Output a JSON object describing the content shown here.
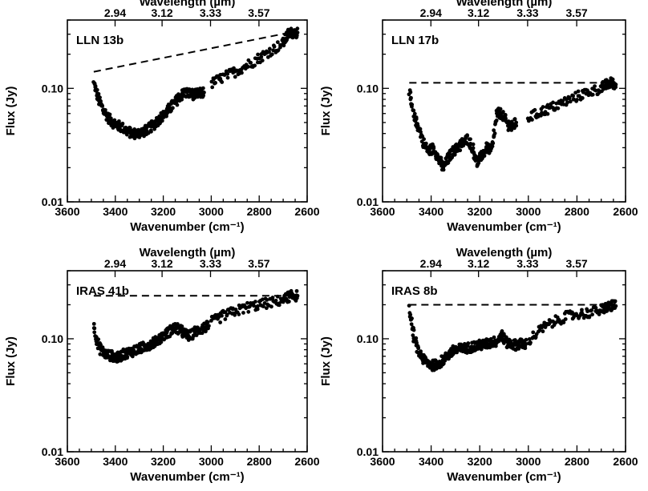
{
  "chart_data": [
    {
      "type": "scatter",
      "panel_label": "LLN 13b",
      "xlabel": "Wavenumber (cm⁻¹)",
      "ylabel": "Flux (Jy)",
      "top_axis_title": "Wavelength (µm)",
      "top_ticks": [
        {
          "wavenumber": 3401,
          "label": "2.94"
        },
        {
          "wavenumber": 3205,
          "label": "3.12"
        },
        {
          "wavenumber": 3003,
          "label": "3.33"
        },
        {
          "wavenumber": 2801,
          "label": "3.57"
        }
      ],
      "xlim": [
        3600,
        2600
      ],
      "ylim": [
        0.01,
        0.4
      ],
      "yscale": "log",
      "x_ticks": [
        "3600",
        "3400",
        "3200",
        "3000",
        "2800",
        "2600"
      ],
      "y_ticks": [
        "0.10",
        "0.01"
      ],
      "continuum": {
        "x": [
          3490,
          2640
        ],
        "y": [
          0.14,
          0.32
        ]
      },
      "segments": [
        {
          "x": [
            3490,
            3470,
            3450,
            3430,
            3410,
            3390,
            3370,
            3350,
            3330,
            3310,
            3290,
            3270,
            3250,
            3230,
            3210,
            3190,
            3170,
            3150,
            3130,
            3110,
            3090,
            3070,
            3050,
            3030
          ],
          "y": [
            0.11,
            0.08,
            0.065,
            0.055,
            0.05,
            0.047,
            0.045,
            0.042,
            0.04,
            0.04,
            0.041,
            0.043,
            0.046,
            0.05,
            0.055,
            0.06,
            0.068,
            0.075,
            0.085,
            0.092,
            0.09,
            0.088,
            0.09,
            0.092
          ]
        },
        {
          "x": [
            3000,
            2950,
            2900,
            2850,
            2800,
            2750,
            2700,
            2680,
            2660,
            2640
          ],
          "y": [
            0.11,
            0.125,
            0.14,
            0.16,
            0.185,
            0.215,
            0.25,
            0.3,
            0.31,
            0.31
          ]
        }
      ]
    },
    {
      "type": "scatter",
      "panel_label": "LLN 17b",
      "xlabel": "Wavenumber (cm⁻¹)",
      "ylabel": "Flux (Jy)",
      "top_axis_title": "Wavelength (µm)",
      "top_ticks": [
        {
          "wavenumber": 3401,
          "label": "2.94"
        },
        {
          "wavenumber": 3205,
          "label": "3.12"
        },
        {
          "wavenumber": 3003,
          "label": "3.33"
        },
        {
          "wavenumber": 2801,
          "label": "3.57"
        }
      ],
      "xlim": [
        3600,
        2600
      ],
      "ylim": [
        0.01,
        0.4
      ],
      "yscale": "log",
      "x_ticks": [
        "3600",
        "3400",
        "3200",
        "3000",
        "2800",
        "2600"
      ],
      "y_ticks": [
        "0.10",
        "0.01"
      ],
      "continuum": {
        "x": [
          3490,
          2640
        ],
        "y": [
          0.112,
          0.112
        ]
      },
      "segments": [
        {
          "x": [
            3490,
            3470,
            3450,
            3430,
            3410,
            3390,
            3370,
            3350,
            3330,
            3310,
            3290,
            3270,
            3250,
            3230,
            3210,
            3190,
            3170,
            3150,
            3130,
            3110,
            3090,
            3070,
            3050
          ],
          "y": [
            0.09,
            0.055,
            0.045,
            0.032,
            0.028,
            0.03,
            0.024,
            0.02,
            0.024,
            0.028,
            0.03,
            0.033,
            0.036,
            0.03,
            0.022,
            0.026,
            0.03,
            0.028,
            0.06,
            0.06,
            0.05,
            0.045,
            0.05
          ]
        },
        {
          "x": [
            3000,
            2950,
            2900,
            2850,
            2800,
            2750,
            2700,
            2680,
            2660,
            2640
          ],
          "y": [
            0.055,
            0.062,
            0.068,
            0.076,
            0.085,
            0.093,
            0.1,
            0.108,
            0.112,
            0.108
          ]
        }
      ]
    },
    {
      "type": "scatter",
      "panel_label": "IRAS 41b",
      "xlabel": "Wavenumber (cm⁻¹)",
      "ylabel": "Flux (Jy)",
      "top_axis_title": "Wavelength (µm)",
      "top_ticks": [
        {
          "wavenumber": 3401,
          "label": "2.94"
        },
        {
          "wavenumber": 3205,
          "label": "3.12"
        },
        {
          "wavenumber": 3003,
          "label": "3.33"
        },
        {
          "wavenumber": 2801,
          "label": "3.57"
        }
      ],
      "xlim": [
        3600,
        2600
      ],
      "ylim": [
        0.01,
        0.4
      ],
      "yscale": "log",
      "x_ticks": [
        "3600",
        "3400",
        "3200",
        "3000",
        "2800",
        "2600"
      ],
      "y_ticks": [
        "0.10",
        "0.01"
      ],
      "continuum": {
        "x": [
          3490,
          2640
        ],
        "y": [
          0.24,
          0.24
        ]
      },
      "segments": [
        {
          "x": [
            3490,
            3470,
            3450,
            3430,
            3410,
            3390,
            3370,
            3350,
            3330,
            3310,
            3290,
            3270,
            3250,
            3230,
            3210,
            3190,
            3170,
            3150,
            3130,
            3110,
            3090,
            3070,
            3050,
            3030,
            3010
          ],
          "y": [
            0.13,
            0.085,
            0.075,
            0.072,
            0.07,
            0.068,
            0.072,
            0.075,
            0.077,
            0.08,
            0.083,
            0.087,
            0.09,
            0.095,
            0.102,
            0.11,
            0.118,
            0.125,
            0.12,
            0.11,
            0.105,
            0.115,
            0.12,
            0.125,
            0.13
          ]
        },
        {
          "x": [
            3000,
            2950,
            2900,
            2850,
            2800,
            2750,
            2700,
            2680,
            2660,
            2640
          ],
          "y": [
            0.14,
            0.16,
            0.175,
            0.19,
            0.2,
            0.21,
            0.22,
            0.235,
            0.24,
            0.24
          ]
        }
      ]
    },
    {
      "type": "scatter",
      "panel_label": "IRAS 8b",
      "xlabel": "Wavenumber (cm⁻¹)",
      "ylabel": "Flux (Jy)",
      "top_axis_title": "Wavelength (µm)",
      "top_ticks": [
        {
          "wavenumber": 3401,
          "label": "2.94"
        },
        {
          "wavenumber": 3205,
          "label": "3.12"
        },
        {
          "wavenumber": 3003,
          "label": "3.33"
        },
        {
          "wavenumber": 2801,
          "label": "3.57"
        }
      ],
      "xlim": [
        3600,
        2600
      ],
      "ylim": [
        0.01,
        0.4
      ],
      "yscale": "log",
      "x_ticks": [
        "3600",
        "3400",
        "3200",
        "3000",
        "2800",
        "2600"
      ],
      "y_ticks": [
        "0.10",
        "0.01"
      ],
      "continuum": {
        "x": [
          3490,
          2640
        ],
        "y": [
          0.2,
          0.2
        ]
      },
      "segments": [
        {
          "x": [
            3490,
            3470,
            3450,
            3430,
            3410,
            3390,
            3370,
            3350,
            3330,
            3310,
            3290,
            3270,
            3250,
            3230,
            3210,
            3190,
            3170,
            3150,
            3130,
            3110,
            3090,
            3070,
            3050,
            3030,
            3010
          ],
          "y": [
            0.18,
            0.1,
            0.075,
            0.065,
            0.06,
            0.058,
            0.06,
            0.065,
            0.072,
            0.078,
            0.08,
            0.082,
            0.083,
            0.085,
            0.087,
            0.088,
            0.09,
            0.093,
            0.095,
            0.11,
            0.092,
            0.09,
            0.088,
            0.09,
            0.09
          ]
        },
        {
          "x": [
            3000,
            2950,
            2900,
            2850,
            2800,
            2750,
            2700,
            2680,
            2660,
            2640
          ],
          "y": [
            0.095,
            0.12,
            0.14,
            0.155,
            0.165,
            0.17,
            0.18,
            0.19,
            0.195,
            0.195
          ]
        }
      ]
    }
  ]
}
